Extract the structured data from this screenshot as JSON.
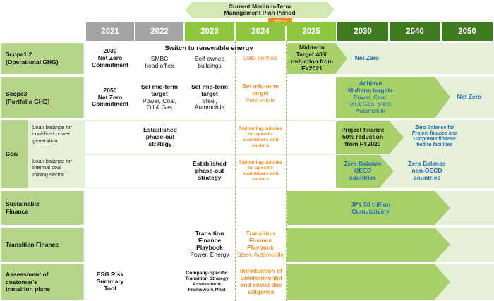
{
  "plan_banner": {
    "line1": "Current Medium-Term",
    "line2": "Management Plan Period"
  },
  "new_badge": "New",
  "years": [
    "2021",
    "2022",
    "2023",
    "2024",
    "2025",
    "2030",
    "2040",
    "2050"
  ],
  "colors": {
    "grey": "#a3a3a3",
    "light_green": "#8cc63f",
    "mid_green": "#5aa02c",
    "dark_green": "#3e7a1f",
    "header": "#b6d58a",
    "orange": "#f08c1e",
    "blue": "#1c6fb5"
  },
  "rows": {
    "scope12": {
      "header": [
        "Scope1,2",
        "(Operational GHG)"
      ],
      "c2021": [
        "2030",
        "Net Zero",
        "Commitment"
      ],
      "switch": "Switch to renewable energy",
      "c2022": [
        "SMBC",
        "head office"
      ],
      "c2023": [
        "Self-owned",
        "buildings"
      ],
      "c2024": "Data centers",
      "c2025": [
        "Mid-term",
        "Target 40%",
        "reduction from",
        "FY2021"
      ],
      "c2030": "Net Zero"
    },
    "scope3": {
      "header": [
        "Scope3",
        "(Portfolio GHG)"
      ],
      "c2021": [
        "2050",
        "Net Zero",
        "Commitment"
      ],
      "c2022": [
        "Set mid-term",
        "target"
      ],
      "c2022_sub": [
        "Power, Coal,",
        "Oil & Gas"
      ],
      "c2023": [
        "Set mid-term",
        "target"
      ],
      "c2023_sub": [
        "Steel,",
        "Automobile"
      ],
      "c2024": [
        "Set mid-term",
        "target"
      ],
      "c2024_sub": "Real estate",
      "c2030": [
        "Achieve",
        "Midterm targets"
      ],
      "c2030_sub": [
        "Power, Coal,",
        "Oil & Gas, Steel,",
        "Automobile"
      ],
      "c2050": "Net Zero"
    },
    "coal": {
      "header": "Coal",
      "power": {
        "label": [
          "Loan balance for",
          "coal-fired power",
          "generation"
        ],
        "c2022": [
          "Established",
          "phase-out",
          "strategy"
        ],
        "c2024": [
          "Tightening policies",
          "for specific",
          "businesses and",
          "sectors"
        ],
        "c2030": [
          "Project finance",
          "50% reduction",
          "from FY2020"
        ],
        "c2040": [
          "Zero Balance for",
          "Project finance and",
          "Corporate finance",
          "tied to facilities"
        ]
      },
      "mining": {
        "label": [
          "Loan balance for",
          "thermal coal",
          "mining sector"
        ],
        "c2023": [
          "Established",
          "phase-out",
          "strategy"
        ],
        "c2024": [
          "Tightening policies",
          "for specific",
          "businesses and",
          "sectors"
        ],
        "c2030": [
          "Zero Balance",
          "OECD",
          "countries"
        ],
        "c2040": [
          "Zero Balance",
          "non-OECD",
          "countries"
        ]
      }
    },
    "sustainable": {
      "header": [
        "Sustainable",
        "Finance"
      ],
      "c2030": [
        "JPY 50 trillion",
        "Cumulatively"
      ]
    },
    "transition": {
      "header": "Transition Finance",
      "c2023": [
        "Transition",
        "Finance",
        "Playbook"
      ],
      "c2023_sub": "Power, Energy",
      "c2024": [
        "Transition",
        "Finance",
        "Playbook"
      ],
      "c2024_sub": "Steel, Automobile"
    },
    "assessment": {
      "header": [
        "Assessment of",
        "customer's",
        "transition plans"
      ],
      "c2021": [
        "ESG Risk",
        "Summary",
        "Tool"
      ],
      "c2023": [
        "Company-Specific",
        "Transition Strategy",
        "Assessment",
        "Framework Pilot"
      ],
      "c2024": [
        "Introduction of",
        "Environmental",
        "and social due",
        "diligence"
      ]
    }
  }
}
